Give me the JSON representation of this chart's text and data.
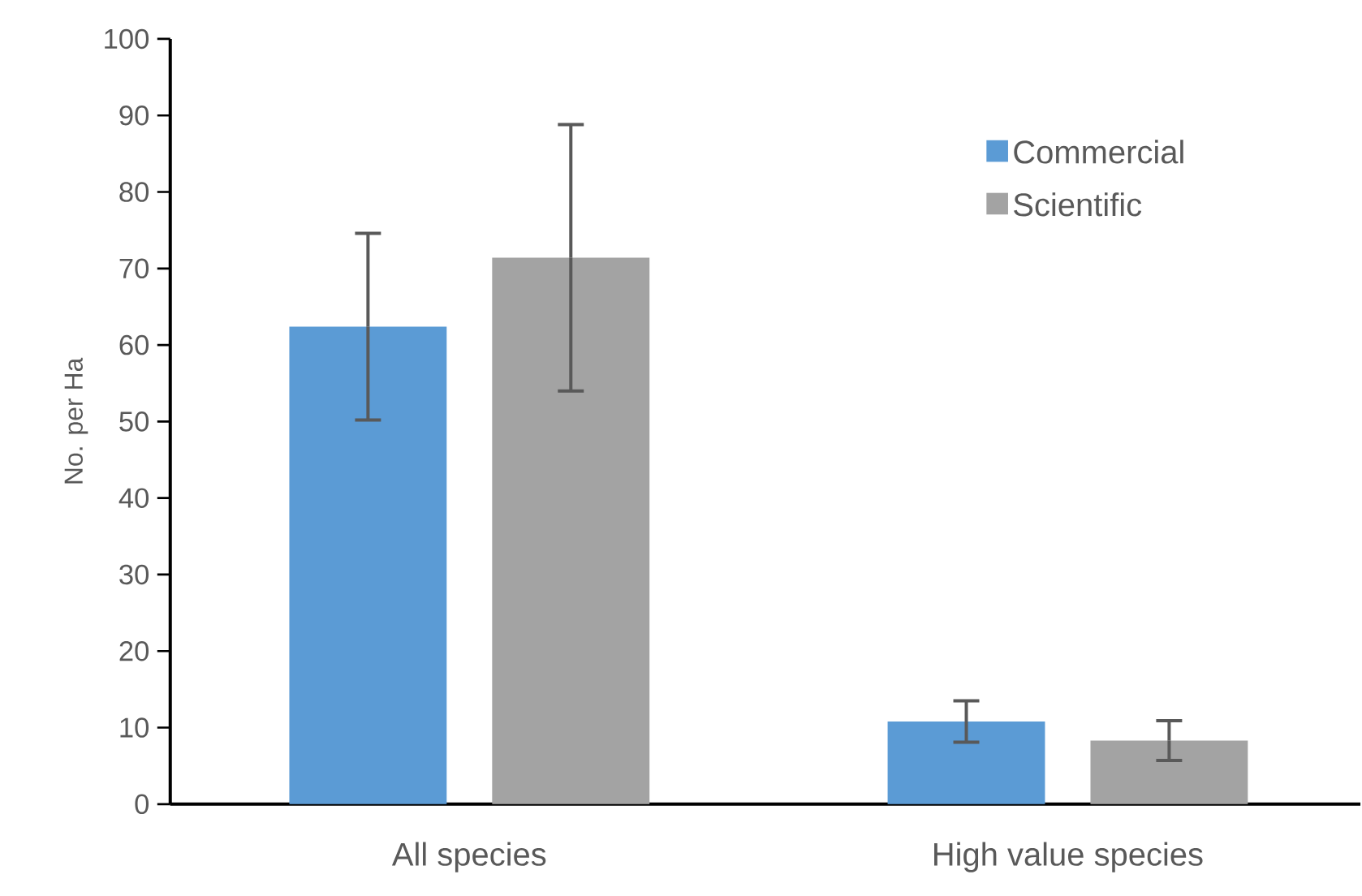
{
  "chart_data": {
    "type": "bar",
    "ylabel": "No. per Ha",
    "categories": [
      "All species",
      "High value species"
    ],
    "series": [
      {
        "name": "Commercial",
        "color": "#5b9bd5",
        "values": [
          62.4,
          10.8
        ],
        "errors": [
          12.2,
          2.7
        ]
      },
      {
        "name": "Scientific",
        "color": "#a3a3a3",
        "values": [
          71.4,
          8.3
        ],
        "errors": [
          17.4,
          2.6
        ]
      }
    ],
    "ylim": [
      0,
      100
    ],
    "yticks": [
      0,
      10,
      20,
      30,
      40,
      50,
      60,
      70,
      80,
      90,
      100
    ],
    "grid": false,
    "legend": "top right"
  }
}
